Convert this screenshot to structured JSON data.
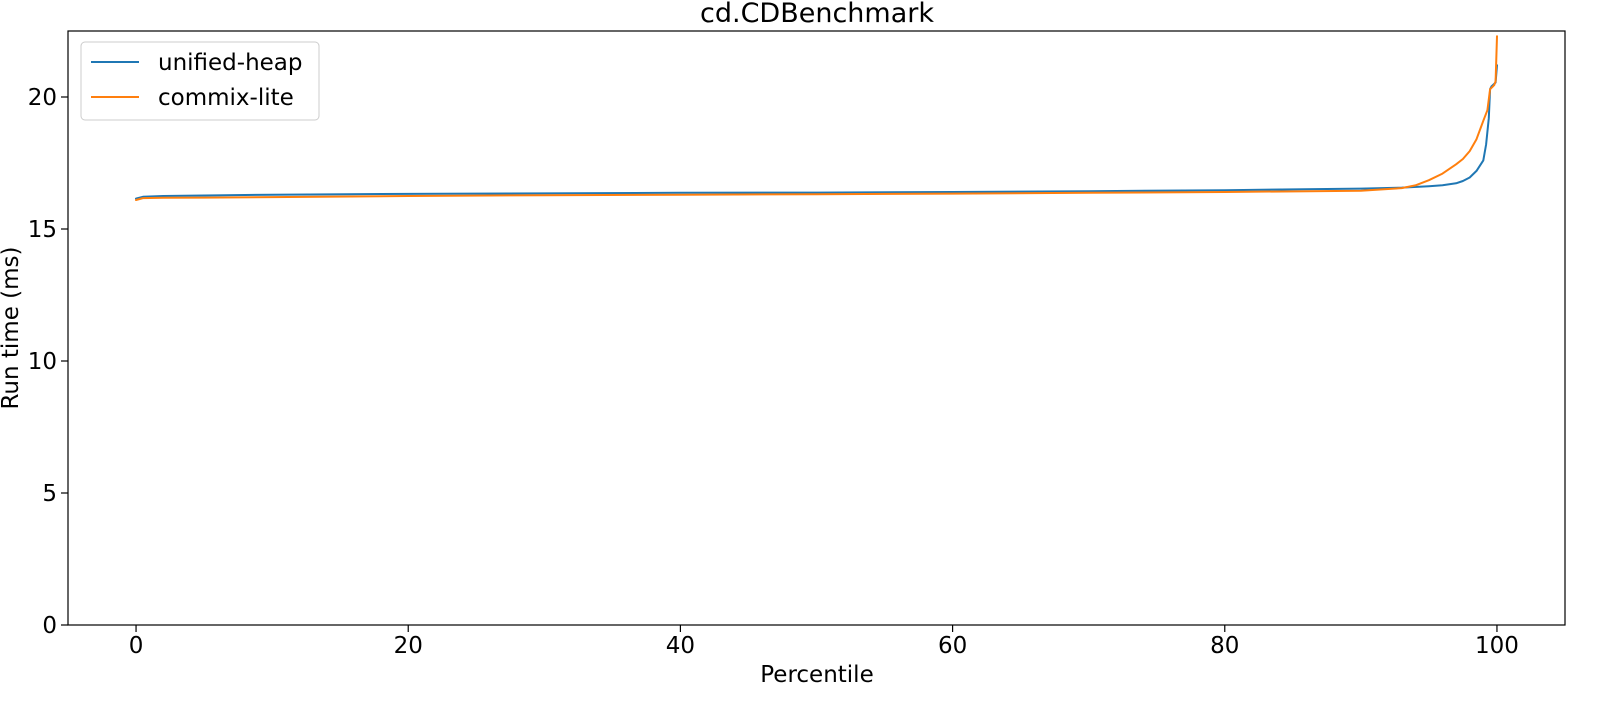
{
  "chart_data": {
    "type": "line",
    "title": "cd.CDBenchmark",
    "xlabel": "Percentile",
    "ylabel": "Run time (ms)",
    "xlim": [
      -5,
      105
    ],
    "ylim": [
      0,
      22.5
    ],
    "xticks": [
      0,
      20,
      40,
      60,
      80,
      100
    ],
    "yticks": [
      0,
      5,
      10,
      15,
      20
    ],
    "grid": false,
    "legend": "top-left",
    "series": [
      {
        "name": "unified-heap",
        "color": "#1f77b4",
        "x": [
          0,
          0.5,
          2,
          5,
          10,
          20,
          30,
          40,
          50,
          60,
          70,
          80,
          90,
          93,
          95,
          96,
          97,
          97.5,
          98,
          98.5,
          99,
          99.2,
          99.4,
          99.5,
          99.6,
          99.7,
          99.8,
          99.9,
          100
        ],
        "y": [
          16.15,
          16.22,
          16.25,
          16.27,
          16.3,
          16.33,
          16.35,
          16.37,
          16.38,
          16.4,
          16.43,
          16.47,
          16.53,
          16.57,
          16.62,
          16.66,
          16.73,
          16.82,
          16.95,
          17.2,
          17.6,
          18.2,
          19.2,
          20.3,
          20.4,
          20.45,
          20.5,
          20.55,
          21.2
        ]
      },
      {
        "name": "commix-lite",
        "color": "#ff7f0e",
        "x": [
          0,
          0.5,
          2,
          5,
          10,
          20,
          30,
          40,
          50,
          60,
          70,
          80,
          90,
          93,
          94,
          95,
          96,
          97,
          97.5,
          98,
          98.5,
          99,
          99.3,
          99.5,
          99.6,
          99.7,
          99.8,
          99.9,
          100
        ],
        "y": [
          16.1,
          16.17,
          16.18,
          16.19,
          16.21,
          16.25,
          16.28,
          16.3,
          16.32,
          16.34,
          16.37,
          16.4,
          16.45,
          16.55,
          16.65,
          16.85,
          17.1,
          17.45,
          17.65,
          17.95,
          18.4,
          19.1,
          19.5,
          20.3,
          20.35,
          20.4,
          20.45,
          20.6,
          22.3
        ]
      }
    ]
  }
}
